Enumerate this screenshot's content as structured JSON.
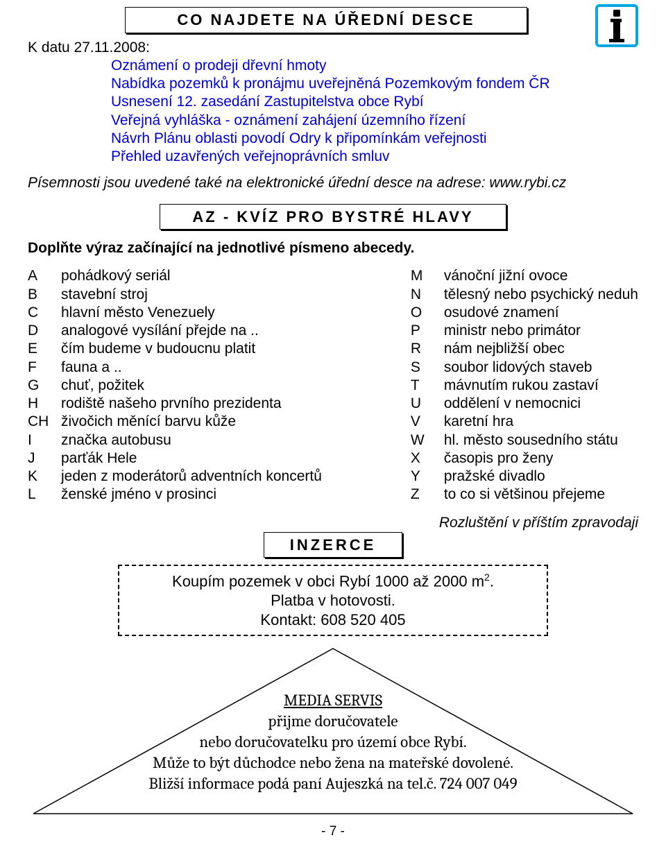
{
  "header": {
    "title": "CO  NAJDETE  NA ÚŘEDNÍ  DESCE",
    "date_line": "K datu 27.11.2008:",
    "notices": [
      "Oznámení o prodeji dřevní hmoty",
      "Nabídka pozemků k pronájmu uveřejněná Pozemkovým fondem ČR",
      "Usnesení 12. zasedání Zastupitelstva obce Rybí",
      "Veřejná vyhláška - oznámení zahájení územního řízení",
      "Návrh Plánu oblasti povodí Odry k připomínkám veřejnosti",
      "Přehled uzavřených veřejnoprávních smluv"
    ],
    "footnote": "Písemnosti jsou uvedené také na elektronické úřední desce na adrese: www.rybi.cz"
  },
  "quiz": {
    "title": "AZ - KVÍZ PRO BYSTRÉ HLAVY",
    "prompt": "Doplňte výraz začínající na jednotlivé písmeno abecedy.",
    "left": [
      {
        "l": "A",
        "c": "pohádkový seriál"
      },
      {
        "l": "B",
        "c": "stavební stroj"
      },
      {
        "l": "C",
        "c": "hlavní město Venezuely"
      },
      {
        "l": "D",
        "c": "analogové vysílání přejde na .."
      },
      {
        "l": "E",
        "c": "čím budeme v budoucnu platit"
      },
      {
        "l": "F",
        "c": "fauna a .."
      },
      {
        "l": "G",
        "c": "chuť, požitek"
      },
      {
        "l": "H",
        "c": "rodiště našeho prvního prezidenta"
      },
      {
        "l": "CH",
        "c": "živočich  měnící barvu kůže"
      },
      {
        "l": "I",
        "c": "značka autobusu"
      },
      {
        "l": "J",
        "c": "parťák Hele"
      },
      {
        "l": "K",
        "c": "jeden z moderátorů adventních koncertů"
      },
      {
        "l": "L",
        "c": "ženské jméno v prosinci"
      }
    ],
    "right": [
      {
        "l": "M",
        "c": "vánoční jižní ovoce"
      },
      {
        "l": "N",
        "c": "tělesný nebo psychický neduh"
      },
      {
        "l": "O",
        "c": "osudové znamení"
      },
      {
        "l": "P",
        "c": "ministr nebo primátor"
      },
      {
        "l": "R",
        "c": "nám nejbližší obec"
      },
      {
        "l": "S",
        "c": "soubor lidových staveb"
      },
      {
        "l": "T",
        "c": "mávnutím rukou zastaví"
      },
      {
        "l": "U",
        "c": "oddělení v nemocnici"
      },
      {
        "l": "V",
        "c": "karetní hra"
      },
      {
        "l": "W",
        "c": "hl. město sousedního státu"
      },
      {
        "l": "X",
        "c": "časopis pro ženy"
      },
      {
        "l": "Y",
        "c": "pražské divadlo"
      },
      {
        "l": "Z",
        "c": "to co si většinou přejeme"
      }
    ],
    "note": "Rozluštění v příštím zpravodaji"
  },
  "ads": {
    "title": "INZERCE",
    "box_line1_a": "Koupím pozemek v obci Rybí 1000 až 2000 m",
    "box_line1_sup": "2",
    "box_line1_b": ".",
    "box_line2": "Platba v hotovosti.",
    "box_line3": "Kontakt: 608 520 405"
  },
  "media": {
    "title": "MEDIA SERVIS",
    "l1": "přijme doručovatele",
    "l2": "nebo doručovatelku pro území obce Rybí.",
    "l3": "Může to být důchodce nebo žena na mateřské dovolené.",
    "l4": "Bližší informace podá paní Aujeszká na  tel.č.  724 007 049"
  },
  "page": "- 7 -",
  "colors": {
    "link_blue": "#0000d0",
    "icon_border": "#00a7e0"
  }
}
